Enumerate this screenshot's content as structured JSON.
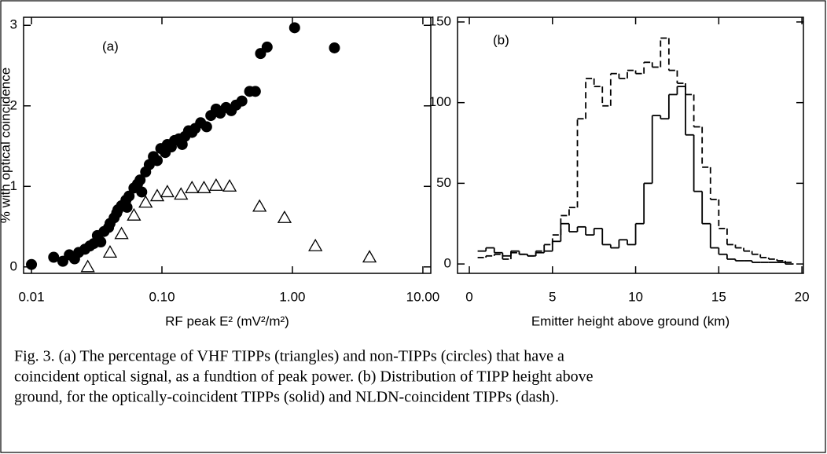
{
  "chart_data": [
    {
      "type": "scatter",
      "annotation": "(a)",
      "xlabel": "RF peak E² (mV²/m²)",
      "ylabel": "% with optical coincidence",
      "xscale": "log",
      "xlim": [
        0.0087,
        11.5
      ],
      "ylim": [
        -0.08,
        3.1
      ],
      "xticks": [
        0.01,
        {
          "value": 0.1,
          "label": "0.10"
        },
        {
          "value": 1,
          "label": "1.00"
        },
        {
          "value": 10,
          "label": "10.00"
        }
      ],
      "yticks": [
        0,
        1,
        2,
        3
      ],
      "series": [
        {
          "marker": "filled-circle",
          "color": "#000000",
          "x": [
            0.01,
            0.0148,
            0.0174,
            0.0195,
            0.0214,
            0.023,
            0.0257,
            0.028,
            0.03,
            0.032,
            0.034,
            0.036,
            0.039,
            0.04,
            0.043,
            0.045,
            0.046,
            0.049,
            0.053,
            0.054,
            0.056,
            0.061,
            0.065,
            0.068,
            0.07,
            0.075,
            0.08,
            0.086,
            0.092,
            0.098,
            0.106,
            0.11,
            0.118,
            0.125,
            0.135,
            0.143,
            0.15,
            0.16,
            0.17,
            0.18,
            0.198,
            0.22,
            0.237,
            0.26,
            0.28,
            0.31,
            0.34,
            0.37,
            0.41,
            0.47,
            0.52,
            0.57,
            0.64,
            1.04,
            2.1
          ],
          "values": [
            0.03,
            0.12,
            0.07,
            0.15,
            0.1,
            0.18,
            0.22,
            0.26,
            0.29,
            0.39,
            0.31,
            0.44,
            0.49,
            0.54,
            0.61,
            0.67,
            0.71,
            0.76,
            0.83,
            0.74,
            0.88,
            0.98,
            1.03,
            1.08,
            0.93,
            1.18,
            1.27,
            1.37,
            1.32,
            1.47,
            1.42,
            1.52,
            1.49,
            1.57,
            1.59,
            1.52,
            1.62,
            1.69,
            1.67,
            1.72,
            1.79,
            1.74,
            1.88,
            1.96,
            1.91,
            1.98,
            1.94,
            2.01,
            2.06,
            2.18,
            2.18,
            2.65,
            2.73,
            2.97,
            2.72
          ]
        },
        {
          "marker": "open-triangle",
          "color": "#000000",
          "x": [
            0.027,
            0.04,
            0.049,
            0.061,
            0.075,
            0.092,
            0.11,
            0.14,
            0.17,
            0.21,
            0.26,
            0.33,
            0.56,
            0.87,
            1.5,
            3.9
          ],
          "values": [
            0.0,
            0.18,
            0.41,
            0.64,
            0.8,
            0.88,
            0.93,
            0.9,
            0.98,
            0.98,
            1.01,
            1.0,
            0.75,
            0.61,
            0.26,
            0.12
          ]
        }
      ]
    },
    {
      "type": "histogram",
      "annotation": "(b)",
      "xlabel": "Emitter height above ground (km)",
      "xlim": [
        -0.71,
        20.09
      ],
      "ylim": [
        -5.8,
        152.9
      ],
      "xticks": [
        0,
        5,
        10,
        15,
        20
      ],
      "yticks": [
        0,
        50,
        100,
        150
      ],
      "bins": [
        0.5,
        1,
        1.5,
        2,
        2.5,
        3,
        3.5,
        4,
        4.5,
        5,
        5.5,
        6,
        6.5,
        7,
        7.5,
        8,
        8.5,
        9,
        9.5,
        10,
        10.5,
        11,
        11.5,
        12,
        12.5,
        13,
        13.5,
        14,
        14.5,
        15,
        15.5,
        16,
        16.5,
        17,
        17.5,
        18,
        18.5,
        19,
        19.5
      ],
      "series": [
        {
          "line_style": "solid",
          "color": "#000000",
          "values": [
            8,
            10,
            7,
            5,
            8,
            6,
            5,
            7,
            8,
            14,
            25,
            20,
            23,
            18,
            22,
            12,
            10,
            15,
            12,
            25,
            50,
            92,
            90,
            105,
            110,
            80,
            45,
            25,
            10,
            6,
            3,
            2,
            2,
            1,
            1,
            1,
            1,
            0
          ]
        },
        {
          "line_style": "dashed",
          "color": "#000000",
          "values": [
            4,
            5,
            6,
            3,
            7,
            6,
            5,
            8,
            12,
            18,
            30,
            35,
            90,
            115,
            110,
            98,
            118,
            115,
            120,
            118,
            125,
            122,
            140,
            120,
            112,
            105,
            85,
            60,
            40,
            22,
            12,
            10,
            8,
            6,
            4,
            3,
            2,
            1
          ]
        }
      ]
    }
  ],
  "caption": [
    "Fig. 3. (a) The percentage of VHF TIPPs (triangles) and non-TIPPs (circles) that have a",
    "coincident optical signal, as a fundtion of peak power. (b) Distribution of TIPP height above",
    "ground, for the optically-coincident TIPPs (solid) and NLDN-coincident TIPPs (dash)."
  ]
}
